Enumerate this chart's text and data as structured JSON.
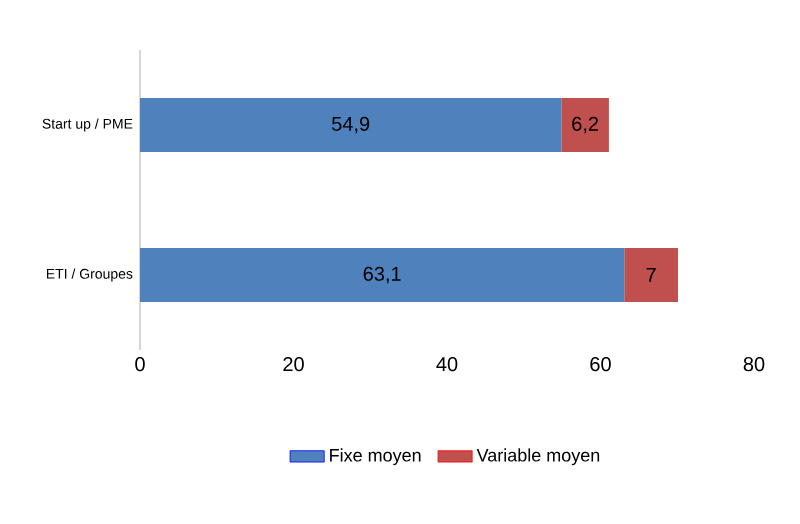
{
  "chart_data": {
    "type": "bar",
    "orientation": "horizontal",
    "stacked": true,
    "categories": [
      "Start up / PME",
      "ETI / Groupes"
    ],
    "series": [
      {
        "name": "Fixe moyen",
        "color": "#4f81bd",
        "values": [
          54.9,
          63.1
        ],
        "value_labels": [
          "54,9",
          "63,1"
        ]
      },
      {
        "name": "Variable moyen",
        "color": "#c0504d",
        "values": [
          6.2,
          7
        ],
        "value_labels": [
          "6,2",
          "7"
        ]
      }
    ],
    "xlim": [
      0,
      80
    ],
    "xticks": [
      0,
      20,
      40,
      60,
      80
    ],
    "grid": false,
    "legend": "bottom"
  }
}
